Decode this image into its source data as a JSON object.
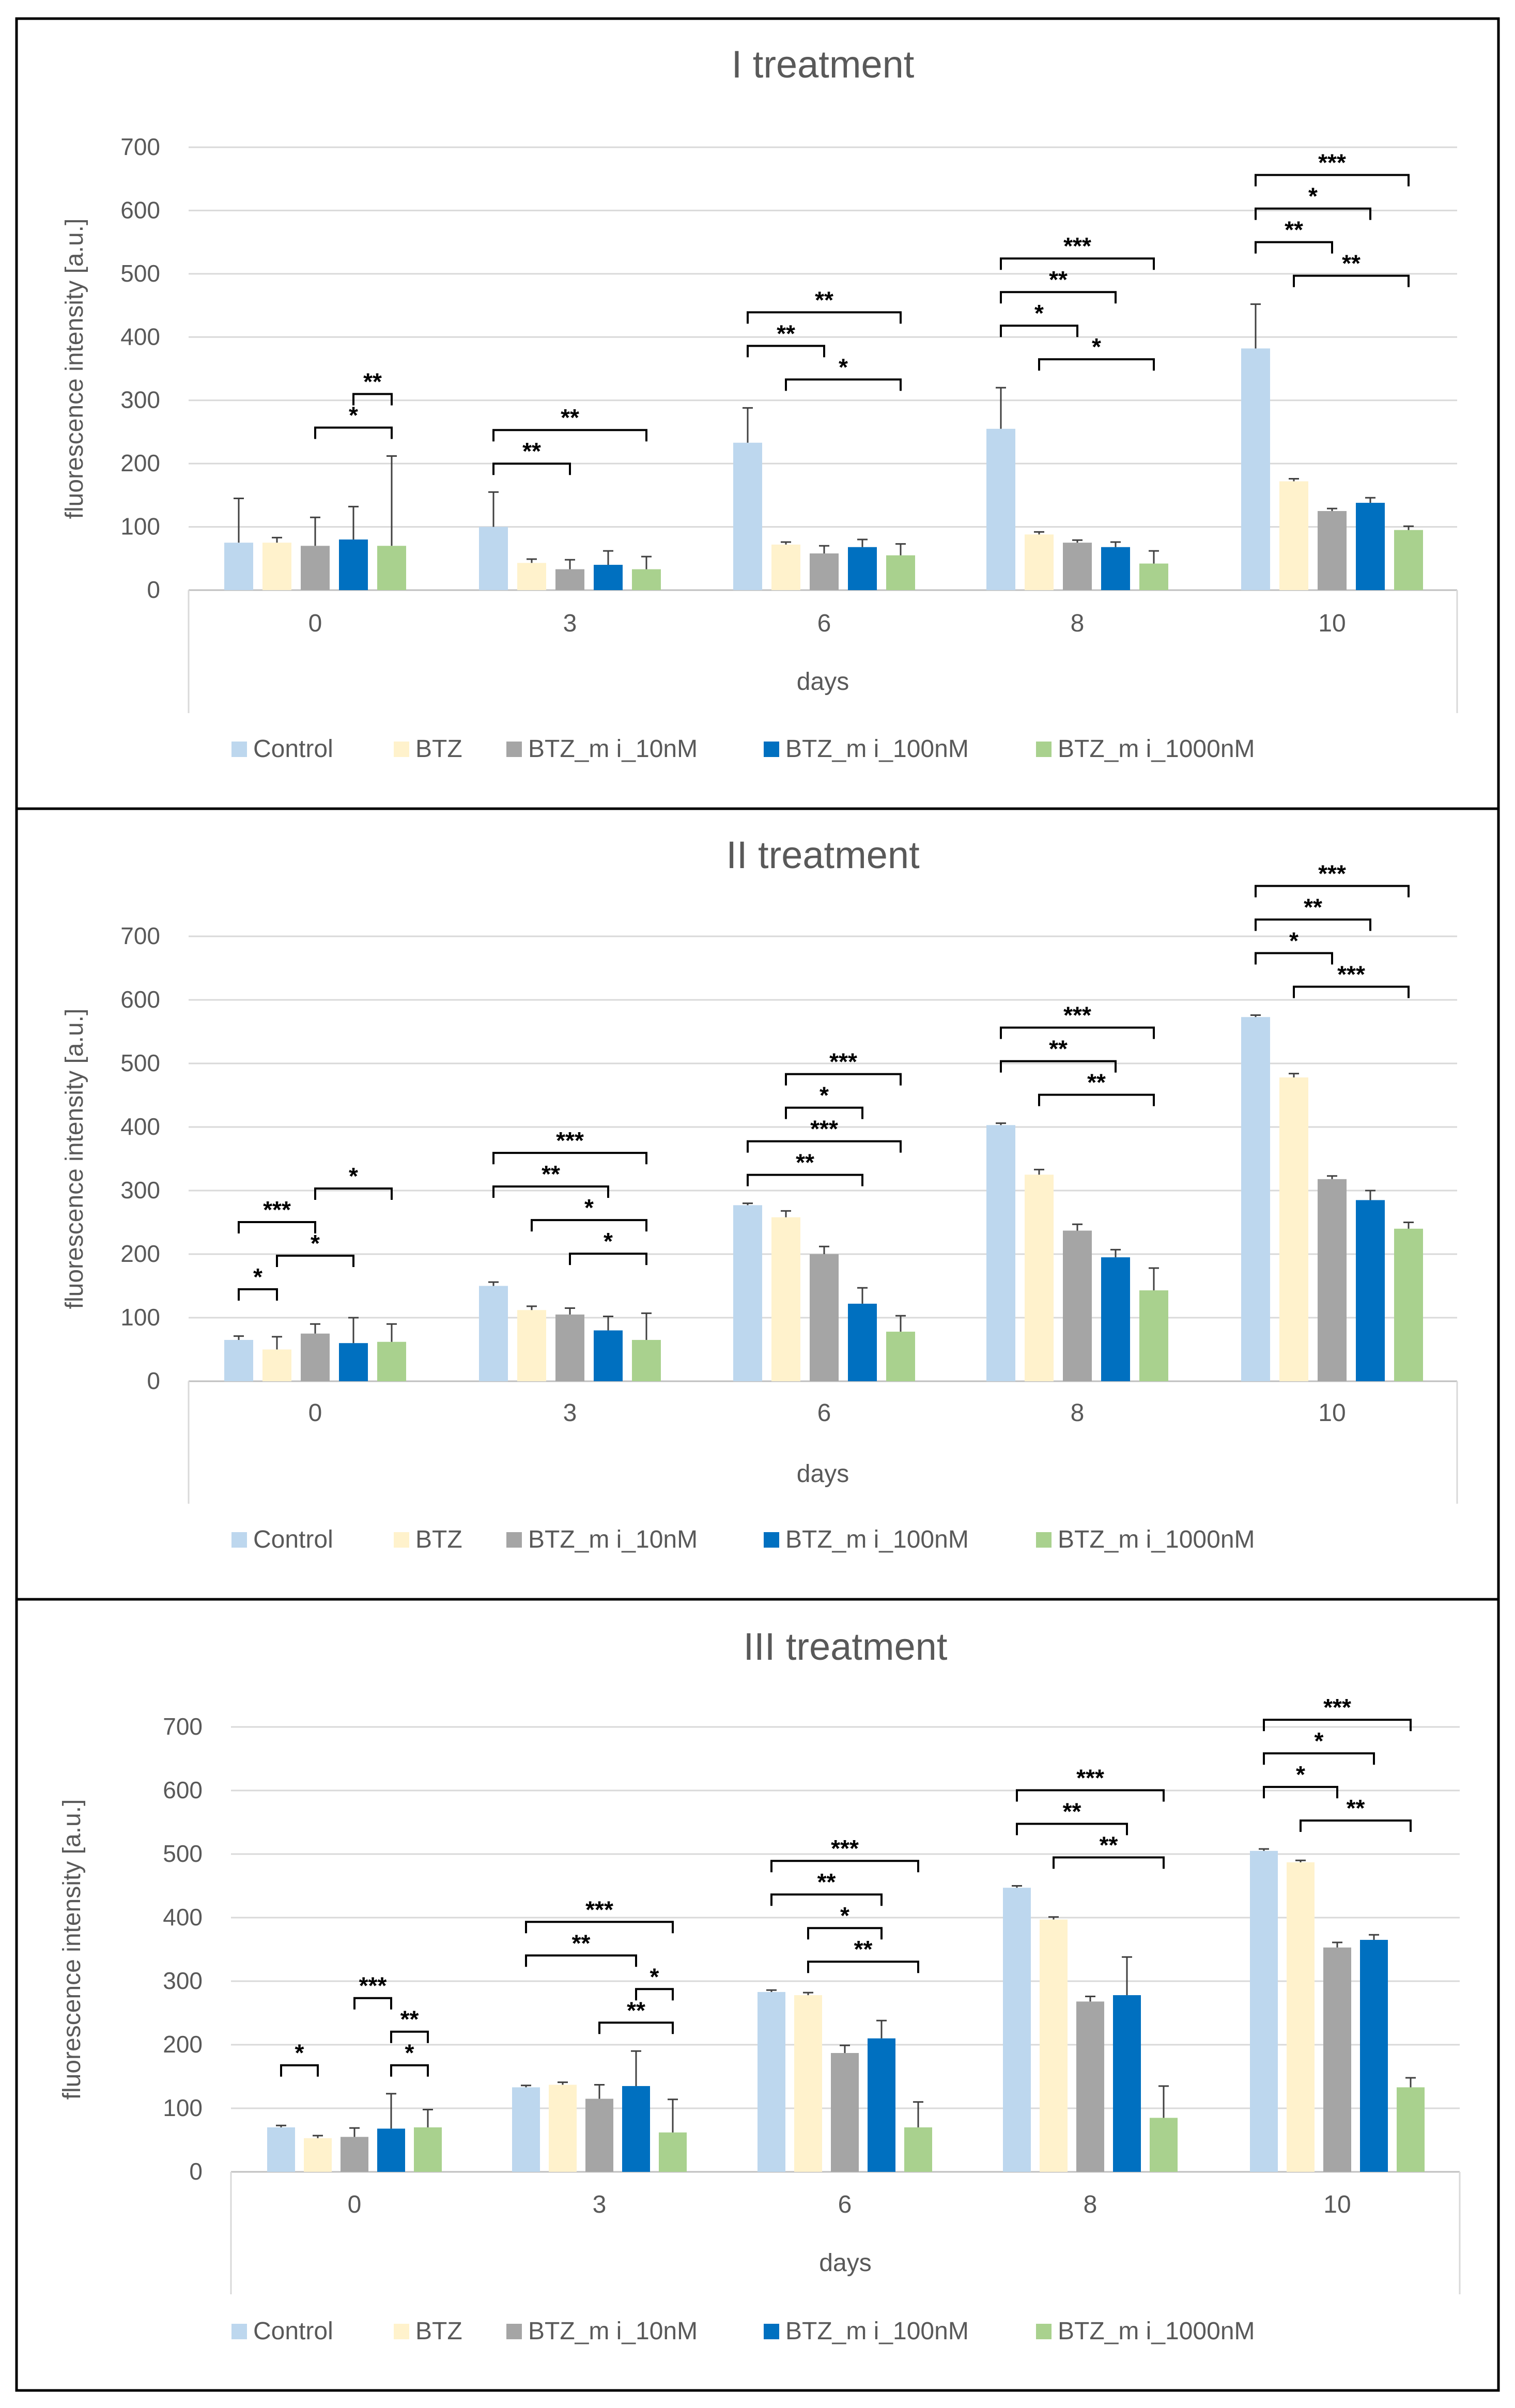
{
  "legend": {
    "labels": [
      "Control",
      "BTZ",
      "BTZ_m i_10nM",
      "BTZ_m i_100nM",
      "BTZ_m i_1000nM"
    ]
  },
  "colors": {
    "series": [
      "#bdd7ee",
      "#fff2cc",
      "#a5a5a5",
      "#0070c0",
      "#a9d18e"
    ],
    "axis_text": "#595959",
    "gridline": "#d9d9d9",
    "title": "#595959",
    "frame": "#000000"
  },
  "chart_data": [
    {
      "type": "bar",
      "title": "I treatment",
      "xlabel": "days",
      "ylabel": "fluorescence intensity [a.u.]",
      "ylim": [
        0,
        700
      ],
      "yticks": [
        0,
        100,
        200,
        300,
        400,
        500,
        600,
        700
      ],
      "categories": [
        "0",
        "3",
        "6",
        "8",
        "10"
      ],
      "series": [
        {
          "name": "Control",
          "values": [
            75,
            100,
            233,
            255,
            382
          ],
          "errors": [
            70,
            55,
            55,
            65,
            70
          ]
        },
        {
          "name": "BTZ",
          "values": [
            75,
            43,
            72,
            88,
            172
          ],
          "errors": [
            8,
            6,
            4,
            4,
            4
          ]
        },
        {
          "name": "BTZ_m i_10nM",
          "values": [
            70,
            33,
            58,
            75,
            125
          ],
          "errors": [
            45,
            15,
            12,
            4,
            4
          ]
        },
        {
          "name": "BTZ_m i_100nM",
          "values": [
            80,
            40,
            68,
            68,
            138
          ],
          "errors": [
            52,
            22,
            12,
            8,
            8
          ]
        },
        {
          "name": "BTZ_m i_1000nM",
          "values": [
            70,
            33,
            55,
            42,
            95
          ],
          "errors": [
            142,
            20,
            18,
            20,
            6
          ]
        }
      ],
      "significance": [
        {
          "group": 0,
          "from": 2,
          "to": 4,
          "label": "*",
          "level": 0
        },
        {
          "group": 0,
          "from": 3,
          "to": 4,
          "label": "**",
          "level": 1
        },
        {
          "group": 1,
          "from": 0,
          "to": 2,
          "label": "**",
          "level": 0
        },
        {
          "group": 1,
          "from": 0,
          "to": 4,
          "label": "**",
          "level": 1
        },
        {
          "group": 2,
          "from": 1,
          "to": 4,
          "label": "*",
          "level": 0
        },
        {
          "group": 2,
          "from": 0,
          "to": 2,
          "label": "**",
          "level": 1
        },
        {
          "group": 2,
          "from": 0,
          "to": 4,
          "label": "**",
          "level": 2
        },
        {
          "group": 3,
          "from": 1,
          "to": 4,
          "label": "*",
          "level": 0
        },
        {
          "group": 3,
          "from": 0,
          "to": 2,
          "label": "*",
          "level": 1
        },
        {
          "group": 3,
          "from": 0,
          "to": 3,
          "label": "**",
          "level": 2
        },
        {
          "group": 3,
          "from": 0,
          "to": 4,
          "label": "***",
          "level": 3
        },
        {
          "group": 4,
          "from": 1,
          "to": 4,
          "label": "**",
          "level": 0
        },
        {
          "group": 4,
          "from": 0,
          "to": 2,
          "label": "**",
          "level": 1
        },
        {
          "group": 4,
          "from": 0,
          "to": 3,
          "label": "*",
          "level": 2
        },
        {
          "group": 4,
          "from": 0,
          "to": 4,
          "label": "***",
          "level": 3
        }
      ]
    },
    {
      "type": "bar",
      "title": "II treatment",
      "xlabel": "days",
      "ylabel": "fluorescence intensity [a.u.]",
      "ylim": [
        0,
        700
      ],
      "yticks": [
        0,
        100,
        200,
        300,
        400,
        500,
        600,
        700
      ],
      "categories": [
        "0",
        "3",
        "6",
        "8",
        "10"
      ],
      "series": [
        {
          "name": "Control",
          "values": [
            65,
            150,
            277,
            403,
            573
          ],
          "errors": [
            6,
            6,
            3,
            3,
            3
          ]
        },
        {
          "name": "BTZ",
          "values": [
            50,
            112,
            258,
            325,
            478
          ],
          "errors": [
            20,
            6,
            10,
            8,
            6
          ]
        },
        {
          "name": "BTZ_m i_10nM",
          "values": [
            75,
            105,
            200,
            237,
            318
          ],
          "errors": [
            15,
            10,
            12,
            10,
            5
          ]
        },
        {
          "name": "BTZ_m i_100nM",
          "values": [
            60,
            80,
            122,
            195,
            285
          ],
          "errors": [
            40,
            22,
            25,
            12,
            15
          ]
        },
        {
          "name": "BTZ_m i_1000nM",
          "values": [
            62,
            65,
            78,
            143,
            240
          ],
          "errors": [
            28,
            42,
            25,
            35,
            10
          ]
        }
      ],
      "significance": [
        {
          "group": 0,
          "from": 0,
          "to": 1,
          "label": "*",
          "level": 0
        },
        {
          "group": 0,
          "from": 1,
          "to": 3,
          "label": "*",
          "level": 1
        },
        {
          "group": 0,
          "from": 0,
          "to": 2,
          "label": "***",
          "level": 2
        },
        {
          "group": 0,
          "from": 2,
          "to": 4,
          "label": "*",
          "level": 3
        },
        {
          "group": 1,
          "from": 2,
          "to": 4,
          "label": "*",
          "level": 0
        },
        {
          "group": 1,
          "from": 1,
          "to": 4,
          "label": "*",
          "level": 1
        },
        {
          "group": 1,
          "from": 0,
          "to": 3,
          "label": "**",
          "level": 2
        },
        {
          "group": 1,
          "from": 0,
          "to": 4,
          "label": "***",
          "level": 3
        },
        {
          "group": 2,
          "from": 0,
          "to": 3,
          "label": "**",
          "level": 0
        },
        {
          "group": 2,
          "from": 0,
          "to": 4,
          "label": "***",
          "level": 1
        },
        {
          "group": 2,
          "from": 1,
          "to": 3,
          "label": "*",
          "level": 2
        },
        {
          "group": 2,
          "from": 1,
          "to": 4,
          "label": "***",
          "level": 3
        },
        {
          "group": 3,
          "from": 1,
          "to": 4,
          "label": "**",
          "level": 0
        },
        {
          "group": 3,
          "from": 0,
          "to": 3,
          "label": "**",
          "level": 1
        },
        {
          "group": 3,
          "from": 0,
          "to": 4,
          "label": "***",
          "level": 2
        },
        {
          "group": 4,
          "from": 1,
          "to": 4,
          "label": "***",
          "level": 0
        },
        {
          "group": 4,
          "from": 0,
          "to": 2,
          "label": "*",
          "level": 1
        },
        {
          "group": 4,
          "from": 0,
          "to": 3,
          "label": "**",
          "level": 2
        },
        {
          "group": 4,
          "from": 0,
          "to": 4,
          "label": "***",
          "level": 3
        }
      ]
    },
    {
      "type": "bar",
      "title": "III treatment",
      "xlabel": "days",
      "ylabel": "fluorescence intensity [a.u.]",
      "ylim": [
        0,
        700
      ],
      "yticks": [
        0,
        100,
        200,
        300,
        400,
        500,
        600,
        700
      ],
      "categories": [
        "0",
        "3",
        "6",
        "8",
        "10"
      ],
      "series": [
        {
          "name": "Control",
          "values": [
            70,
            133,
            283,
            447,
            505
          ],
          "errors": [
            3,
            3,
            3,
            3,
            3
          ]
        },
        {
          "name": "BTZ",
          "values": [
            53,
            137,
            278,
            397,
            487
          ],
          "errors": [
            4,
            4,
            4,
            4,
            3
          ]
        },
        {
          "name": "BTZ_m i_10nM",
          "values": [
            55,
            115,
            187,
            268,
            353
          ],
          "errors": [
            14,
            22,
            12,
            8,
            8
          ]
        },
        {
          "name": "BTZ_m i_100nM",
          "values": [
            68,
            135,
            210,
            278,
            365
          ],
          "errors": [
            55,
            55,
            28,
            60,
            8
          ]
        },
        {
          "name": "BTZ_m i_1000nM",
          "values": [
            70,
            62,
            70,
            85,
            133
          ],
          "errors": [
            28,
            52,
            40,
            50,
            15
          ]
        }
      ],
      "significance": [
        {
          "group": 0,
          "from": 0,
          "to": 1,
          "label": "*",
          "level": 0
        },
        {
          "group": 0,
          "from": 3,
          "to": 4,
          "label": "*",
          "level": 0
        },
        {
          "group": 0,
          "from": 3,
          "to": 4,
          "label": "**",
          "level": 1
        },
        {
          "group": 0,
          "from": 2,
          "to": 3,
          "label": "***",
          "level": 2
        },
        {
          "group": 1,
          "from": 2,
          "to": 4,
          "label": "**",
          "level": 0
        },
        {
          "group": 1,
          "from": 3,
          "to": 4,
          "label": "*",
          "level": 1
        },
        {
          "group": 1,
          "from": 0,
          "to": 3,
          "label": "**",
          "level": 2
        },
        {
          "group": 1,
          "from": 0,
          "to": 4,
          "label": "***",
          "level": 3
        },
        {
          "group": 2,
          "from": 1,
          "to": 4,
          "label": "**",
          "level": 0
        },
        {
          "group": 2,
          "from": 1,
          "to": 3,
          "label": "*",
          "level": 1
        },
        {
          "group": 2,
          "from": 0,
          "to": 3,
          "label": "**",
          "level": 2
        },
        {
          "group": 2,
          "from": 0,
          "to": 4,
          "label": "***",
          "level": 3
        },
        {
          "group": 3,
          "from": 1,
          "to": 4,
          "label": "**",
          "level": 0
        },
        {
          "group": 3,
          "from": 0,
          "to": 3,
          "label": "**",
          "level": 1
        },
        {
          "group": 3,
          "from": 0,
          "to": 4,
          "label": "***",
          "level": 2
        },
        {
          "group": 4,
          "from": 1,
          "to": 4,
          "label": "**",
          "level": 0
        },
        {
          "group": 4,
          "from": 0,
          "to": 2,
          "label": "*",
          "level": 1
        },
        {
          "group": 4,
          "from": 0,
          "to": 3,
          "label": "*",
          "level": 2
        },
        {
          "group": 4,
          "from": 0,
          "to": 4,
          "label": "***",
          "level": 3
        }
      ]
    }
  ]
}
